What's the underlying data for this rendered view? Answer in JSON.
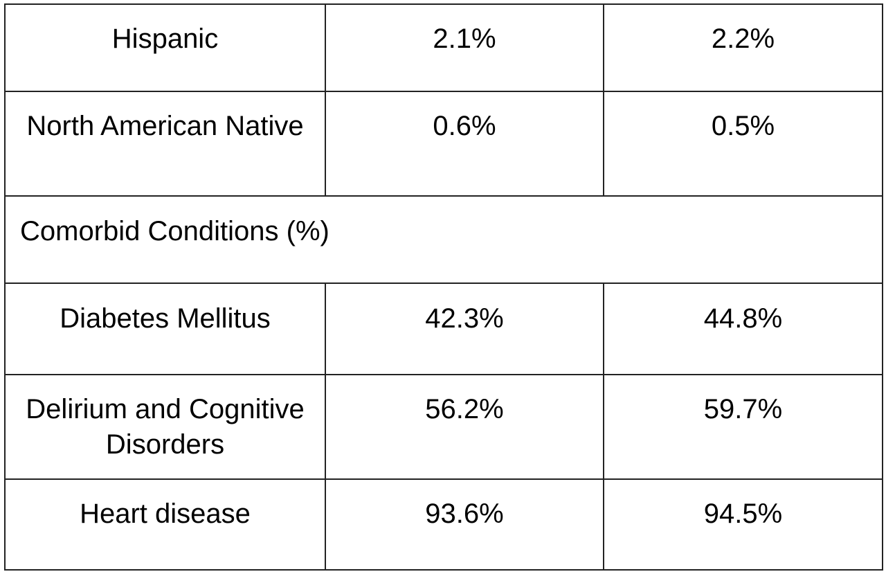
{
  "rows": [
    {
      "label": "Hispanic",
      "col1": "2.1%",
      "col2": "2.2%"
    },
    {
      "label": "North American Native",
      "col1": "0.6%",
      "col2": "0.5%"
    },
    {
      "section": "Comorbid Conditions (%)"
    },
    {
      "label": "Diabetes Mellitus",
      "col1": "42.3%",
      "col2": "44.8%"
    },
    {
      "label": "Delirium and Cognitive Disorders",
      "col1": "56.2%",
      "col2": "59.7%"
    },
    {
      "label": "Heart disease",
      "col1": "93.6%",
      "col2": "94.5%"
    }
  ]
}
